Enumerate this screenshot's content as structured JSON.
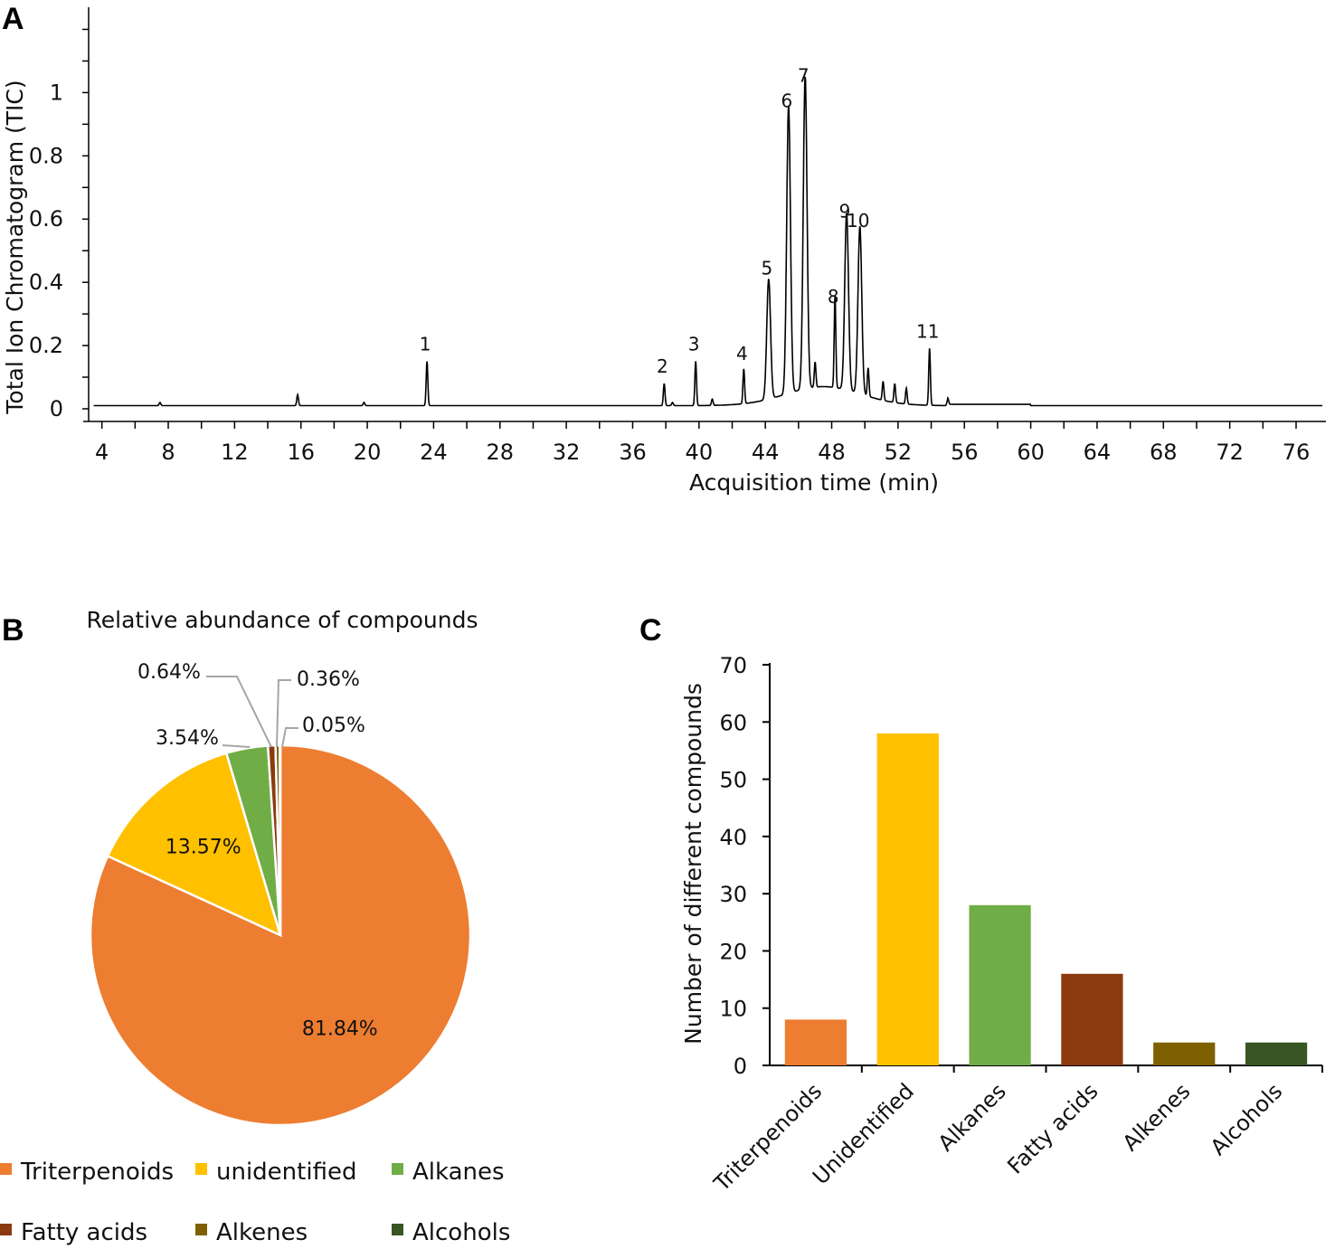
{
  "panels": {
    "a": "A",
    "b": "B",
    "c": "C"
  },
  "chart_data": [
    {
      "type": "line",
      "panel": "A",
      "title": "",
      "xlabel": "Acquisition time (min)",
      "ylabel": "Total Ion Chromatogram (TIC)",
      "xlim": [
        3.2,
        77.8
      ],
      "ylim": [
        0,
        1.27
      ],
      "x_ticks": [
        "4",
        "8",
        "12",
        "16",
        "20",
        "24",
        "28",
        "32",
        "36",
        "40",
        "44",
        "48",
        "52",
        "56",
        "60",
        "64",
        "68",
        "72",
        "76"
      ],
      "y_ticks": [
        "0",
        "0.2",
        "0.4",
        "0.6",
        "0.8",
        "1"
      ],
      "baseline": 0.01,
      "peaks": [
        {
          "label": "1",
          "x": 23.6,
          "y": 0.15
        },
        {
          "label": "2",
          "x": 37.9,
          "y": 0.08
        },
        {
          "label": "3",
          "x": 39.8,
          "y": 0.15
        },
        {
          "label": "4",
          "x": 42.7,
          "y": 0.12
        },
        {
          "label": "5",
          "x": 44.2,
          "y": 0.39
        },
        {
          "label": "6",
          "x": 45.4,
          "y": 0.92
        },
        {
          "label": "7",
          "x": 46.4,
          "y": 1.0
        },
        {
          "label": "8",
          "x": 48.2,
          "y": 0.3
        },
        {
          "label": "9",
          "x": 48.9,
          "y": 0.57
        },
        {
          "label": "10",
          "x": 49.7,
          "y": 0.54
        },
        {
          "label": "11",
          "x": 53.9,
          "y": 0.19
        }
      ],
      "minor_peaks": [
        {
          "x": 7.5,
          "y": 0.02
        },
        {
          "x": 15.8,
          "y": 0.045
        },
        {
          "x": 19.8,
          "y": 0.02
        },
        {
          "x": 38.4,
          "y": 0.02
        },
        {
          "x": 40.8,
          "y": 0.03
        },
        {
          "x": 47.0,
          "y": 0.09
        },
        {
          "x": 50.2,
          "y": 0.1
        },
        {
          "x": 51.1,
          "y": 0.07
        },
        {
          "x": 51.8,
          "y": 0.07
        },
        {
          "x": 52.5,
          "y": 0.06
        },
        {
          "x": 55.0,
          "y": 0.03
        }
      ]
    },
    {
      "type": "pie",
      "panel": "B",
      "title": "Relative abundance of compounds",
      "slices": [
        {
          "name": "Triterpenoids",
          "value": 81.84,
          "label": "81.84%",
          "color": "#ED7D31"
        },
        {
          "name": "unidentified",
          "value": 13.57,
          "label": "13.57%",
          "color": "#FFC000"
        },
        {
          "name": "Alkanes",
          "value": 3.54,
          "label": "3.54%",
          "color": "#70AD47"
        },
        {
          "name": "Fatty acids",
          "value": 0.64,
          "label": "0.64%",
          "color": "#8B3A0F"
        },
        {
          "name": "Alkenes",
          "value": 0.36,
          "label": "0.36%",
          "color": "#7F6000"
        },
        {
          "name": "Alcohols",
          "value": 0.05,
          "label": "0.05%",
          "color": "#375623"
        }
      ],
      "legend": [
        "Triterpenoids",
        "unidentified",
        "Alkanes",
        "Fatty acids",
        "Alkenes",
        "Alcohols"
      ]
    },
    {
      "type": "bar",
      "panel": "C",
      "title": "",
      "xlabel": "",
      "ylabel": "Number of different compounds",
      "categories": [
        "Triterpenoids",
        "Unidentified",
        "Alkanes",
        "Fatty acids",
        "Alkenes",
        "Alcohols"
      ],
      "values": [
        8,
        58,
        28,
        16,
        4,
        4
      ],
      "colors": [
        "#ED7D31",
        "#FFC000",
        "#70AD47",
        "#8B3A0F",
        "#7F6000",
        "#375623"
      ],
      "ylim": [
        0,
        70
      ],
      "y_ticks": [
        "0",
        "10",
        "20",
        "30",
        "40",
        "50",
        "60",
        "70"
      ]
    }
  ]
}
